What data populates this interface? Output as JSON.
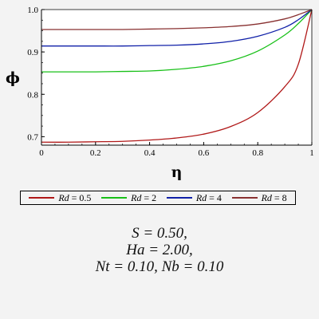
{
  "chart_data": {
    "type": "line",
    "title": "",
    "xlabel": "η",
    "ylabel": "ϕ",
    "xlim": [
      0,
      1
    ],
    "ylim": [
      0.68,
      1.0
    ],
    "x_ticks": [
      "0",
      "0.2",
      "0.4",
      "0.6",
      "0.8",
      "1"
    ],
    "y_ticks": [
      "0.7",
      "0.8",
      "0.9",
      "1.0"
    ],
    "x": [
      0,
      0.1,
      0.2,
      0.3,
      0.4,
      0.5,
      0.6,
      0.7,
      0.8,
      0.9,
      0.95,
      1.0
    ],
    "series": [
      {
        "name": "Rd = 0.5",
        "label_var": "Rd",
        "label_val": "= 0.5",
        "color": "#b01818",
        "values": [
          0.687,
          0.687,
          0.688,
          0.689,
          0.692,
          0.697,
          0.706,
          0.724,
          0.757,
          0.818,
          0.871,
          1.0
        ]
      },
      {
        "name": "Rd = 2",
        "label_var": "Rd",
        "label_val": "= 2",
        "color": "#18c018",
        "values": [
          0.853,
          0.853,
          0.853,
          0.854,
          0.855,
          0.859,
          0.866,
          0.879,
          0.902,
          0.94,
          0.967,
          1.0
        ]
      },
      {
        "name": "Rd = 4",
        "label_var": "Rd",
        "label_val": "= 4",
        "color": "#1020a8",
        "values": [
          0.914,
          0.914,
          0.914,
          0.914,
          0.915,
          0.916,
          0.919,
          0.925,
          0.937,
          0.958,
          0.976,
          1.0
        ]
      },
      {
        "name": "Rd = 8",
        "label_var": "Rd",
        "label_val": "= 8",
        "color": "#883030",
        "values": [
          0.953,
          0.953,
          0.953,
          0.953,
          0.954,
          0.955,
          0.957,
          0.96,
          0.966,
          0.978,
          0.988,
          1.0
        ]
      }
    ],
    "grid": false,
    "legend_position": "bottom"
  },
  "params": {
    "line1": "S = 0.50,",
    "line2": "Ha = 2.00,",
    "line3": "Nt = 0.10, Nb = 0.10"
  }
}
